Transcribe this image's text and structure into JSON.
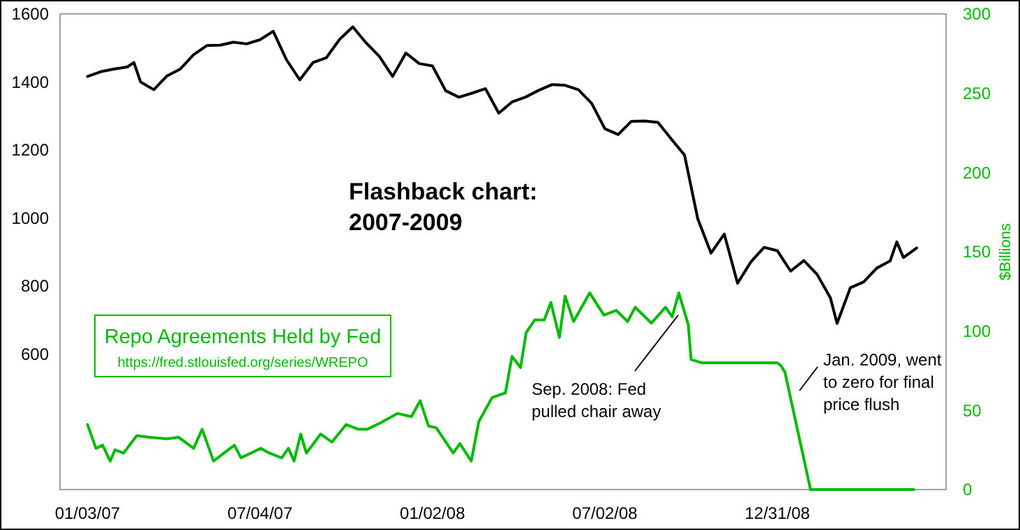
{
  "chart_data": {
    "type": "line",
    "title": "Flashback chart: 2007-2009",
    "y2label": "$Billions",
    "legend": "left",
    "xlim": [
      "2006-12-05",
      "2009-06-27"
    ],
    "xticks": [
      {
        "value": "2007-01-03",
        "label": "01/03/07"
      },
      {
        "value": "2007-07-04",
        "label": "07/04/07"
      },
      {
        "value": "2008-01-02",
        "label": "01/02/08"
      },
      {
        "value": "2008-07-02",
        "label": "07/02/08"
      },
      {
        "value": "2008-12-31",
        "label": "12/31/08"
      }
    ],
    "ylim": [
      200,
      1600
    ],
    "yticks": [
      600,
      800,
      1000,
      1200,
      1400,
      1600
    ],
    "y2lim": [
      0,
      300
    ],
    "y2ticks": [
      0,
      50,
      100,
      150,
      200,
      250,
      300
    ],
    "series": [
      {
        "color": "#000000",
        "x": [
          "2007-01-03",
          "2007-01-17",
          "2007-01-31",
          "2007-02-14",
          "2007-02-21",
          "2007-02-28",
          "2007-03-14",
          "2007-03-28",
          "2007-04-11",
          "2007-04-25",
          "2007-05-09",
          "2007-05-23",
          "2007-06-06",
          "2007-06-20",
          "2007-07-04",
          "2007-07-18",
          "2007-08-01",
          "2007-08-15",
          "2007-08-29",
          "2007-09-12",
          "2007-09-26",
          "2007-10-10",
          "2007-10-24",
          "2007-11-07",
          "2007-11-21",
          "2007-12-05",
          "2007-12-19",
          "2008-01-02",
          "2008-01-16",
          "2008-01-30",
          "2008-02-13",
          "2008-02-27",
          "2008-03-12",
          "2008-03-26",
          "2008-04-09",
          "2008-04-23",
          "2008-05-07",
          "2008-05-21",
          "2008-06-04",
          "2008-06-18",
          "2008-07-02",
          "2008-07-16",
          "2008-07-30",
          "2008-08-13",
          "2008-08-27",
          "2008-09-10",
          "2008-09-24",
          "2008-10-08",
          "2008-10-22",
          "2008-11-05",
          "2008-11-19",
          "2008-12-03",
          "2008-12-17",
          "2008-12-31",
          "2009-01-14",
          "2009-01-28",
          "2009-02-11",
          "2009-02-25",
          "2009-03-04",
          "2009-03-18",
          "2009-04-01",
          "2009-04-15",
          "2009-04-29",
          "2009-05-06",
          "2009-05-13",
          "2009-05-27"
        ],
        "values": [
          1416,
          1430,
          1438,
          1444,
          1457,
          1400,
          1377,
          1418,
          1438,
          1480,
          1507,
          1508,
          1517,
          1512,
          1524,
          1549,
          1465,
          1406,
          1457,
          1471,
          1525,
          1562,
          1515,
          1475,
          1416,
          1485,
          1454,
          1447,
          1374,
          1355,
          1367,
          1380,
          1308,
          1341,
          1355,
          1375,
          1392,
          1390,
          1377,
          1337,
          1262,
          1245,
          1284,
          1285,
          1281,
          1232,
          1185,
          997,
          896,
          952,
          807,
          870,
          913,
          903,
          843,
          874,
          833,
          764,
          689,
          794,
          811,
          852,
          873,
          929,
          883,
          911
        ]
      },
      {
        "name": "Repo Agreements Held by Fed",
        "color": "#00bb00",
        "axis": "y2",
        "x": [
          "2007-01-03",
          "2007-01-12",
          "2007-01-19",
          "2007-01-27",
          "2007-02-01",
          "2007-02-10",
          "2007-02-24",
          "2007-03-09",
          "2007-03-28",
          "2007-04-09",
          "2007-04-25",
          "2007-05-04",
          "2007-05-16",
          "2007-06-07",
          "2007-06-14",
          "2007-07-05",
          "2007-07-14",
          "2007-07-27",
          "2007-08-03",
          "2007-08-09",
          "2007-08-16",
          "2007-08-22",
          "2007-09-06",
          "2007-09-18",
          "2007-10-03",
          "2007-10-16",
          "2007-10-25",
          "2007-11-08",
          "2007-11-26",
          "2007-12-11",
          "2007-12-20",
          "2007-12-29",
          "2008-01-06",
          "2008-01-24",
          "2008-01-31",
          "2008-02-12",
          "2008-02-20",
          "2008-03-05",
          "2008-03-19",
          "2008-03-26",
          "2008-04-04",
          "2008-04-10",
          "2008-04-19",
          "2008-04-29",
          "2008-05-06",
          "2008-05-15",
          "2008-05-21",
          "2008-05-30",
          "2008-06-16",
          "2008-07-01",
          "2008-07-14",
          "2008-07-26",
          "2008-08-03",
          "2008-08-20",
          "2008-09-04",
          "2008-09-11",
          "2008-09-18",
          "2008-09-28",
          "2008-10-01",
          "2008-10-12",
          "2008-12-31",
          "2009-01-04",
          "2009-01-08",
          "2009-02-04",
          "2009-05-24"
        ],
        "values": [
          41,
          26,
          28,
          18,
          25,
          23,
          34,
          33,
          32,
          33,
          26,
          38,
          18,
          28,
          20,
          26,
          23,
          20,
          26,
          18,
          35,
          23,
          35,
          30,
          41,
          38,
          38,
          42,
          48,
          46,
          56,
          40,
          39,
          23,
          29,
          18,
          43,
          58,
          61,
          84,
          77,
          99,
          107,
          107,
          118,
          96,
          122,
          106,
          124,
          110,
          113,
          106,
          115,
          105,
          115,
          109,
          124,
          104,
          82,
          80,
          80,
          78,
          74,
          0,
          0
        ]
      }
    ],
    "annotations": [
      "https://fred.stlouisfed.org/series/WREPO",
      "Sep. 2008: Fed pulled chair away",
      "Jan. 2009, went to zero for final price flush"
    ]
  }
}
